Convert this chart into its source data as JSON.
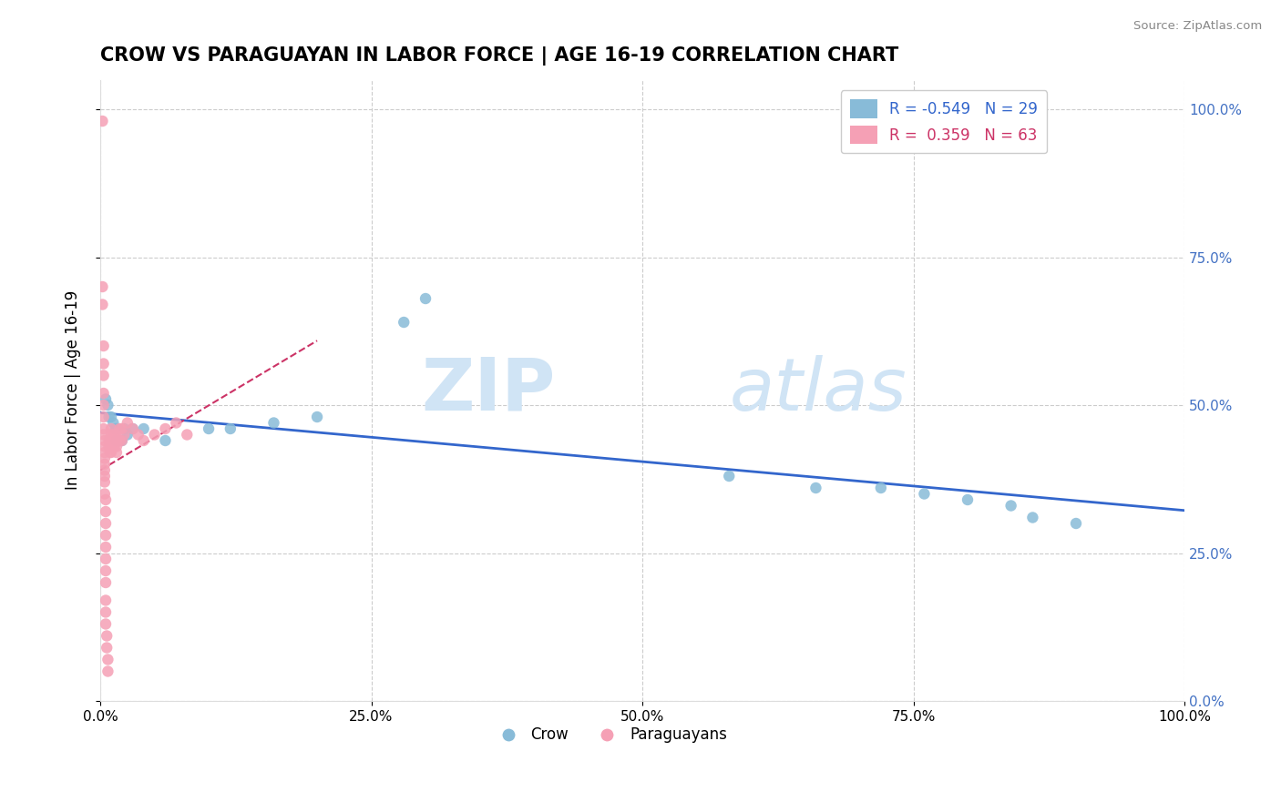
{
  "title": "CROW VS PARAGUAYAN IN LABOR FORCE | AGE 16-19 CORRELATION CHART",
  "source_text": "Source: ZipAtlas.com",
  "ylabel": "In Labor Force | Age 16-19",
  "crow_R": -0.549,
  "crow_N": 29,
  "paraguayan_R": 0.359,
  "paraguayan_N": 63,
  "crow_color": "#88bbd8",
  "paraguayan_color": "#f5a0b5",
  "crow_trend_color": "#3366cc",
  "paraguayan_trend_color": "#cc3366",
  "crow_scatter": [
    [
      0.005,
      0.51
    ],
    [
      0.007,
      0.5
    ],
    [
      0.008,
      0.48
    ],
    [
      0.01,
      0.48
    ],
    [
      0.012,
      0.47
    ],
    [
      0.014,
      0.46
    ],
    [
      0.015,
      0.46
    ],
    [
      0.015,
      0.44
    ],
    [
      0.018,
      0.44
    ],
    [
      0.02,
      0.44
    ],
    [
      0.022,
      0.46
    ],
    [
      0.025,
      0.45
    ],
    [
      0.03,
      0.46
    ],
    [
      0.04,
      0.46
    ],
    [
      0.06,
      0.44
    ],
    [
      0.1,
      0.46
    ],
    [
      0.12,
      0.46
    ],
    [
      0.16,
      0.47
    ],
    [
      0.2,
      0.48
    ],
    [
      0.28,
      0.64
    ],
    [
      0.3,
      0.68
    ],
    [
      0.58,
      0.38
    ],
    [
      0.66,
      0.36
    ],
    [
      0.72,
      0.36
    ],
    [
      0.76,
      0.35
    ],
    [
      0.8,
      0.34
    ],
    [
      0.84,
      0.33
    ],
    [
      0.86,
      0.31
    ],
    [
      0.9,
      0.3
    ]
  ],
  "paraguayan_scatter": [
    [
      0.002,
      0.98
    ],
    [
      0.002,
      0.7
    ],
    [
      0.002,
      0.67
    ],
    [
      0.003,
      0.6
    ],
    [
      0.003,
      0.57
    ],
    [
      0.003,
      0.55
    ],
    [
      0.003,
      0.52
    ],
    [
      0.003,
      0.5
    ],
    [
      0.003,
      0.48
    ],
    [
      0.003,
      0.46
    ],
    [
      0.003,
      0.45
    ],
    [
      0.004,
      0.44
    ],
    [
      0.004,
      0.43
    ],
    [
      0.004,
      0.42
    ],
    [
      0.004,
      0.41
    ],
    [
      0.004,
      0.4
    ],
    [
      0.004,
      0.39
    ],
    [
      0.004,
      0.38
    ],
    [
      0.004,
      0.37
    ],
    [
      0.004,
      0.35
    ],
    [
      0.005,
      0.34
    ],
    [
      0.005,
      0.32
    ],
    [
      0.005,
      0.3
    ],
    [
      0.005,
      0.28
    ],
    [
      0.005,
      0.26
    ],
    [
      0.005,
      0.24
    ],
    [
      0.005,
      0.22
    ],
    [
      0.005,
      0.2
    ],
    [
      0.005,
      0.17
    ],
    [
      0.005,
      0.15
    ],
    [
      0.005,
      0.13
    ],
    [
      0.006,
      0.11
    ],
    [
      0.006,
      0.09
    ],
    [
      0.007,
      0.07
    ],
    [
      0.007,
      0.05
    ],
    [
      0.008,
      0.44
    ],
    [
      0.008,
      0.43
    ],
    [
      0.009,
      0.42
    ],
    [
      0.01,
      0.46
    ],
    [
      0.01,
      0.45
    ],
    [
      0.01,
      0.44
    ],
    [
      0.01,
      0.43
    ],
    [
      0.01,
      0.42
    ],
    [
      0.012,
      0.45
    ],
    [
      0.012,
      0.44
    ],
    [
      0.013,
      0.43
    ],
    [
      0.014,
      0.45
    ],
    [
      0.015,
      0.44
    ],
    [
      0.015,
      0.43
    ],
    [
      0.015,
      0.42
    ],
    [
      0.018,
      0.46
    ],
    [
      0.018,
      0.44
    ],
    [
      0.02,
      0.46
    ],
    [
      0.02,
      0.44
    ],
    [
      0.022,
      0.45
    ],
    [
      0.025,
      0.47
    ],
    [
      0.03,
      0.46
    ],
    [
      0.035,
      0.45
    ],
    [
      0.04,
      0.44
    ],
    [
      0.05,
      0.45
    ],
    [
      0.06,
      0.46
    ],
    [
      0.07,
      0.47
    ],
    [
      0.08,
      0.45
    ]
  ],
  "xlim": [
    0.0,
    1.0
  ],
  "ylim": [
    0.0,
    1.05
  ],
  "xtick_vals": [
    0.0,
    0.25,
    0.5,
    0.75,
    1.0
  ],
  "xtick_labels": [
    "0.0%",
    "25.0%",
    "50.0%",
    "75.0%",
    "100.0%"
  ],
  "ytick_vals": [
    0.0,
    0.25,
    0.5,
    0.75,
    1.0
  ],
  "ytick_labels_right": [
    "0.0%",
    "25.0%",
    "50.0%",
    "75.0%",
    "100.0%"
  ],
  "watermark_zip": "ZIP",
  "watermark_atlas": "atlas",
  "background_color": "#ffffff",
  "grid_color": "#cccccc",
  "title_fontsize": 15,
  "axis_label_fontsize": 12,
  "tick_fontsize": 11,
  "legend_fontsize": 12,
  "right_ytick_color": "#4472c4",
  "watermark_color": "#d0e4f5"
}
